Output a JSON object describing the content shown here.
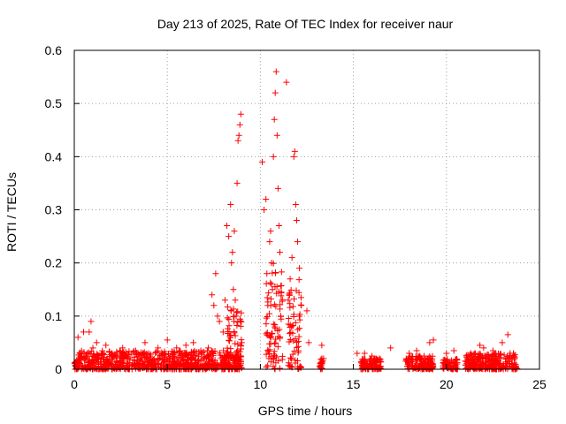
{
  "chart_data": {
    "type": "scatter",
    "title": "Day 213 of 2025, Rate Of TEC Index for receiver naur",
    "xlabel": "GPS time / hours",
    "ylabel": "ROTI / TECUs",
    "xlim": [
      0,
      25
    ],
    "ylim": [
      0,
      0.6
    ],
    "xticks": [
      "0",
      "5",
      "10",
      "15",
      "20",
      "25"
    ],
    "yticks": [
      "0",
      "0.1",
      "0.2",
      "0.3",
      "0.4",
      "0.5",
      "0.6"
    ],
    "grid": true,
    "marker": "+",
    "marker_color": "#ff0000",
    "series": [
      {
        "points": [
          [
            0.1,
            0.012
          ],
          [
            0.2,
            0.06
          ],
          [
            0.3,
            0.03
          ],
          [
            0.5,
            0.07
          ],
          [
            0.6,
            0.02
          ],
          [
            0.8,
            0.07
          ],
          [
            0.9,
            0.09
          ],
          [
            1.0,
            0.04
          ],
          [
            1.2,
            0.05
          ],
          [
            1.3,
            0.02
          ],
          [
            1.5,
            0.03
          ],
          [
            1.7,
            0.045
          ],
          [
            2.0,
            0.02
          ],
          [
            2.3,
            0.03
          ],
          [
            2.6,
            0.04
          ],
          [
            3.0,
            0.02
          ],
          [
            3.3,
            0.035
          ],
          [
            3.8,
            0.05
          ],
          [
            4.0,
            0.03
          ],
          [
            4.5,
            0.04
          ],
          [
            5.0,
            0.055
          ],
          [
            5.5,
            0.04
          ],
          [
            6.0,
            0.045
          ],
          [
            6.4,
            0.05
          ],
          [
            6.8,
            0.035
          ],
          [
            7.2,
            0.04
          ],
          [
            7.4,
            0.14
          ],
          [
            7.5,
            0.12
          ],
          [
            7.6,
            0.18
          ],
          [
            7.7,
            0.1
          ],
          [
            7.8,
            0.09
          ],
          [
            8.0,
            0.07
          ],
          [
            8.1,
            0.13
          ],
          [
            8.2,
            0.27
          ],
          [
            8.3,
            0.25
          ],
          [
            8.4,
            0.31
          ],
          [
            8.45,
            0.2
          ],
          [
            8.5,
            0.22
          ],
          [
            8.55,
            0.15
          ],
          [
            8.6,
            0.26
          ],
          [
            8.65,
            0.13
          ],
          [
            8.7,
            0.1
          ],
          [
            8.75,
            0.35
          ],
          [
            8.8,
            0.43
          ],
          [
            8.85,
            0.44
          ],
          [
            8.9,
            0.46
          ],
          [
            8.95,
            0.48
          ],
          [
            9.0,
            0.05
          ],
          [
            10.1,
            0.39
          ],
          [
            10.2,
            0.3
          ],
          [
            10.3,
            0.32
          ],
          [
            10.35,
            0.18
          ],
          [
            10.4,
            0.12
          ],
          [
            10.5,
            0.24
          ],
          [
            10.55,
            0.26
          ],
          [
            10.6,
            0.2
          ],
          [
            10.65,
            0.15
          ],
          [
            10.7,
            0.4
          ],
          [
            10.75,
            0.47
          ],
          [
            10.8,
            0.52
          ],
          [
            10.85,
            0.56
          ],
          [
            10.9,
            0.44
          ],
          [
            10.95,
            0.34
          ],
          [
            11.0,
            0.27
          ],
          [
            11.05,
            0.22
          ],
          [
            11.1,
            0.1
          ],
          [
            11.4,
            0.54
          ],
          [
            11.5,
            0.13
          ],
          [
            11.6,
            0.17
          ],
          [
            11.7,
            0.21
          ],
          [
            11.8,
            0.4
          ],
          [
            11.85,
            0.41
          ],
          [
            11.9,
            0.31
          ],
          [
            11.95,
            0.28
          ],
          [
            12.0,
            0.24
          ],
          [
            12.1,
            0.19
          ],
          [
            12.2,
            0.12
          ],
          [
            12.5,
            0.11
          ],
          [
            12.6,
            0.05
          ],
          [
            13.3,
            0.045
          ],
          [
            13.4,
            0.02
          ],
          [
            15.2,
            0.03
          ],
          [
            15.6,
            0.03
          ],
          [
            16.0,
            0.025
          ],
          [
            16.4,
            0.02
          ],
          [
            17.0,
            0.04
          ],
          [
            18.0,
            0.03
          ],
          [
            18.4,
            0.035
          ],
          [
            18.8,
            0.025
          ],
          [
            19.1,
            0.05
          ],
          [
            19.3,
            0.055
          ],
          [
            20.0,
            0.03
          ],
          [
            20.4,
            0.035
          ],
          [
            21.3,
            0.03
          ],
          [
            21.8,
            0.045
          ],
          [
            22.0,
            0.04
          ],
          [
            22.5,
            0.035
          ],
          [
            23.0,
            0.05
          ],
          [
            23.3,
            0.065
          ],
          [
            23.6,
            0.03
          ]
        ]
      }
    ],
    "dense_band": {
      "description_ranges": [
        [
          0.0,
          9.0,
          0.0,
          0.035
        ],
        [
          8.2,
          9.0,
          0.0,
          0.12
        ],
        [
          10.3,
          11.2,
          0.0,
          0.2
        ],
        [
          11.5,
          12.2,
          0.0,
          0.18
        ],
        [
          13.2,
          13.4,
          0.0,
          0.02
        ],
        [
          15.4,
          16.5,
          0.0,
          0.02
        ],
        [
          17.8,
          19.3,
          0.0,
          0.025
        ],
        [
          19.8,
          20.6,
          0.0,
          0.02
        ],
        [
          21.0,
          23.8,
          0.0,
          0.03
        ]
      ]
    }
  }
}
